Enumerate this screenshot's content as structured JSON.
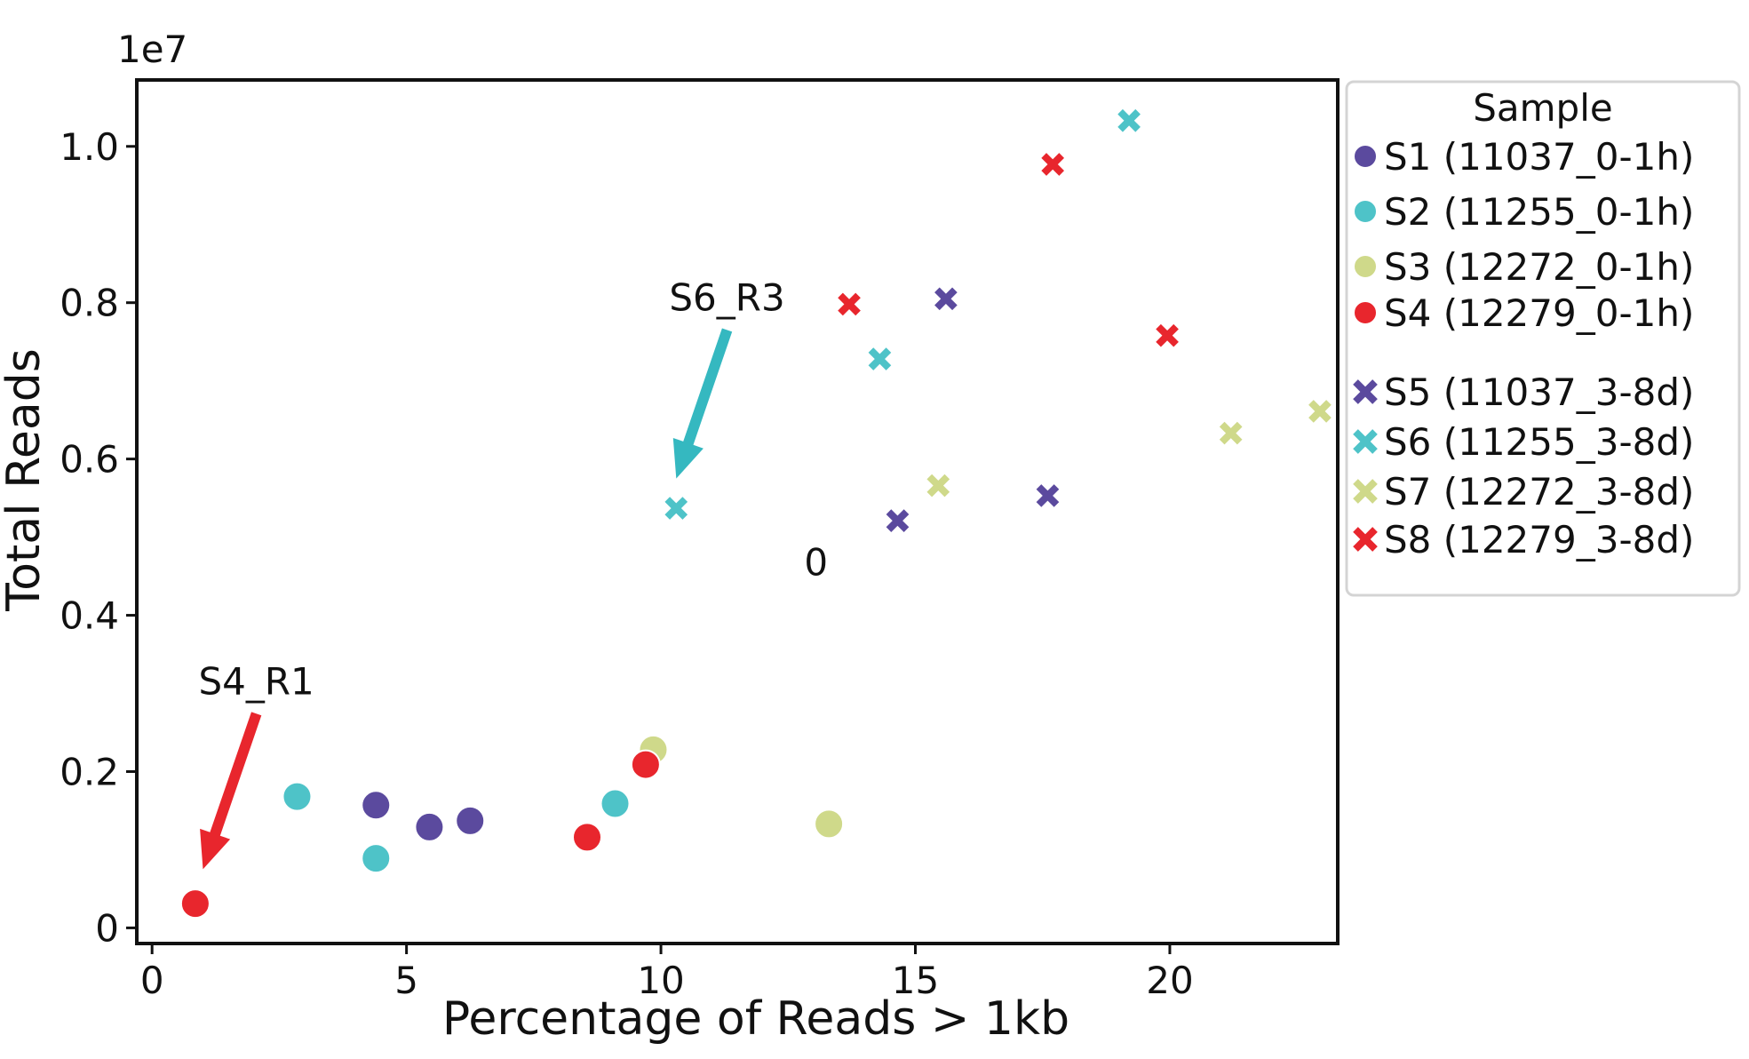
{
  "chart_data": {
    "type": "scatter",
    "xlabel": "Percentage of Reads > 1kb",
    "ylabel": "Total Reads",
    "offset_label": "1e7",
    "xlim": [
      -0.3,
      23.3
    ],
    "ylim": [
      -0.02,
      1.085
    ],
    "x_ticks": [
      0,
      5,
      10,
      15,
      20
    ],
    "y_ticks": [
      0,
      0.2,
      0.4,
      0.6,
      0.8,
      1.0
    ],
    "x_tick_labels": [
      "0",
      "5",
      "10",
      "15",
      "20"
    ],
    "y_tick_labels": [
      "0",
      "0.2",
      "0.4",
      "0.6",
      "0.8",
      "1.0"
    ],
    "grid": false,
    "legend": {
      "title": "Sample",
      "position": "outside-right"
    },
    "series": [
      {
        "name": "S1 (11037_0-1h)",
        "marker": "circle",
        "color": "#5b4a9e",
        "points": [
          [
            4.4,
            0.157
          ],
          [
            5.45,
            0.129
          ],
          [
            6.25,
            0.137
          ]
        ]
      },
      {
        "name": "S2 (11255_0-1h)",
        "marker": "circle",
        "color": "#4ec3c8",
        "points": [
          [
            2.85,
            0.168
          ],
          [
            4.4,
            0.089
          ],
          [
            9.1,
            0.159
          ]
        ]
      },
      {
        "name": "S3 (12272_0-1h)",
        "marker": "circle",
        "color": "#cfd98a",
        "points": [
          [
            9.85,
            0.228
          ],
          [
            13.3,
            0.133
          ]
        ]
      },
      {
        "name": "S4 (12279_0-1h)",
        "marker": "circle",
        "color": "#e8262d",
        "points": [
          [
            0.85,
            0.031
          ],
          [
            8.55,
            0.116
          ],
          [
            9.7,
            0.209
          ]
        ]
      },
      {
        "name": "S5 (11037_3-8d)",
        "marker": "x",
        "color": "#5b4a9e",
        "points": [
          [
            15.6,
            0.805
          ],
          [
            14.65,
            0.521
          ],
          [
            17.6,
            0.553
          ]
        ]
      },
      {
        "name": "S6 (11255_3-8d)",
        "marker": "x",
        "color": "#4ec3c8",
        "points": [
          [
            19.2,
            1.033
          ],
          [
            14.3,
            0.728
          ],
          [
            10.3,
            0.537
          ]
        ]
      },
      {
        "name": "S7 (12272_3-8d)",
        "marker": "x",
        "color": "#cfd98a",
        "points": [
          [
            15.45,
            0.566
          ],
          [
            21.2,
            0.633
          ],
          [
            22.95,
            0.661
          ]
        ]
      },
      {
        "name": "S8 (12279_3-8d)",
        "marker": "x",
        "color": "#e8262d",
        "points": [
          [
            17.7,
            0.977
          ],
          [
            13.7,
            0.798
          ],
          [
            19.95,
            0.758
          ]
        ]
      }
    ],
    "annotations": [
      {
        "text": "S6_R3",
        "color": "#35b8c0",
        "arrow_from": [
          11.3,
          0.765
        ],
        "arrow_to": [
          10.3,
          0.575
        ]
      },
      {
        "text": "S4_R1",
        "color": "#e8262d",
        "arrow_from": [
          2.05,
          0.274
        ],
        "arrow_to": [
          1.0,
          0.075
        ]
      },
      {
        "text": "0",
        "color": "#111111",
        "at": [
          13.05,
          0.467
        ]
      }
    ]
  }
}
